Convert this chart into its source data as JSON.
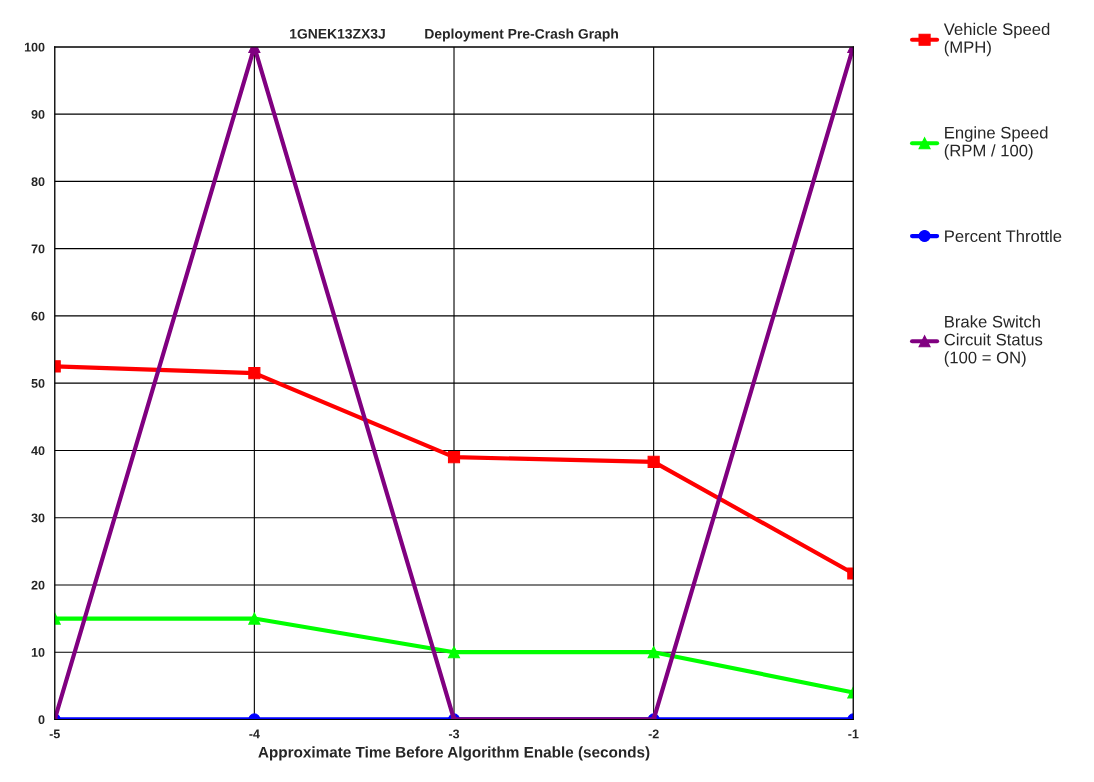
{
  "chart_data": {
    "type": "line",
    "title": "1GNEK13ZX3J          Deployment Pre-Crash Graph",
    "xlabel": "Approximate Time Before Algorithm Enable (seconds)",
    "x": [
      -5,
      -4,
      -3,
      -2,
      -1
    ],
    "series": [
      {
        "name": "Vehicle Speed\n(MPH)",
        "color": "#ff0000",
        "marker": "square",
        "values": [
          52.5,
          51.5,
          39,
          38.3,
          21.7
        ]
      },
      {
        "name": "Engine Speed\n(RPM / 100)",
        "color": "#00ff00",
        "marker": "triangle",
        "values": [
          15,
          15,
          10,
          10,
          4
        ]
      },
      {
        "name": "Percent Throttle",
        "color": "#0000ff",
        "marker": "circle",
        "values": [
          0,
          0,
          0,
          0,
          0
        ]
      },
      {
        "name": "Brake Switch\nCircuit Status\n(100 = ON)",
        "color": "#800080",
        "marker": "triangle",
        "values": [
          0,
          100,
          0,
          0,
          100
        ]
      }
    ],
    "xlim": [
      -5,
      -1
    ],
    "xticks": [
      -5,
      -4,
      -3,
      -2,
      -1
    ],
    "ylim": [
      0,
      100
    ],
    "yticks": [
      0,
      10,
      20,
      30,
      40,
      50,
      60,
      70,
      80,
      90,
      100
    ],
    "grid": true,
    "legend": "right",
    "line_style": "solid"
  }
}
